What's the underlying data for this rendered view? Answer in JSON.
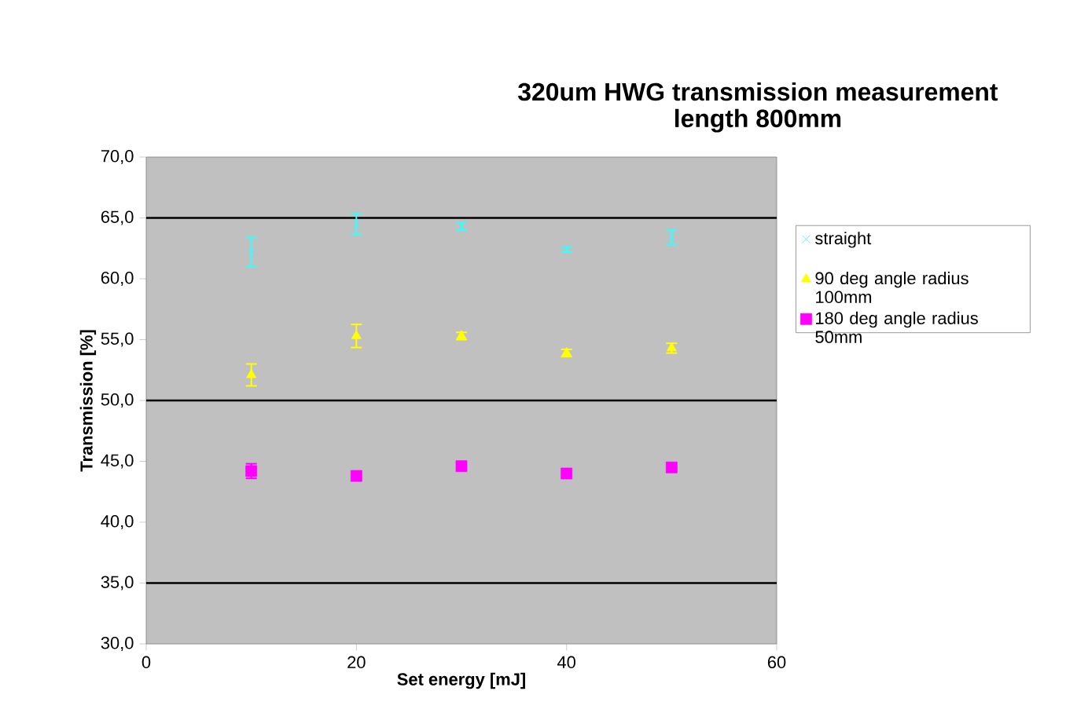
{
  "chart_data": {
    "type": "scatter",
    "title": "320um HWG transmission measurement\nlength 800mm",
    "xlabel": "Set energy [mJ]",
    "ylabel": "Transmission [%]",
    "x": [
      10,
      20,
      30,
      40,
      50
    ],
    "series": [
      {
        "name": "straight",
        "color": "#33ffff",
        "marker": "cross",
        "values": [
          62.2,
          64.5,
          64.3,
          62.4,
          63.4
        ],
        "errors": [
          1.2,
          0.85,
          0.3,
          0.2,
          0.6
        ]
      },
      {
        "name": "90 deg angle radius 100mm",
        "color": "#ffff00",
        "marker": "triangle",
        "values": [
          52.1,
          55.3,
          55.3,
          53.9,
          54.3
        ],
        "errors": [
          0.9,
          0.95,
          0.3,
          0.3,
          0.4
        ]
      },
      {
        "name": "180 deg angle radius 50mm",
        "color": "#ff00ff",
        "marker": "square",
        "values": [
          44.2,
          43.8,
          44.6,
          44.0,
          44.5
        ],
        "errors": [
          0.6,
          null,
          null,
          null,
          null
        ]
      }
    ],
    "xlim": [
      0,
      60
    ],
    "xticks": [
      0,
      20,
      40,
      60
    ],
    "ylim": [
      30,
      70
    ],
    "yticks": [
      {
        "value": 30,
        "label": "30,0"
      },
      {
        "value": 35,
        "label": "35,0"
      },
      {
        "value": 40,
        "label": "40,0"
      },
      {
        "value": 45,
        "label": "45,0"
      },
      {
        "value": 50,
        "label": "50,0"
      },
      {
        "value": 55,
        "label": "55,0"
      },
      {
        "value": 60,
        "label": "60,0"
      },
      {
        "value": 65,
        "label": "65,0"
      },
      {
        "value": 70,
        "label": "70,0"
      }
    ],
    "ref_lines": [
      {
        "axis": "y",
        "value": 35,
        "color": "#000000"
      },
      {
        "axis": "y",
        "value": 50,
        "color": "#000000"
      },
      {
        "axis": "y",
        "value": 65,
        "color": "#000000"
      }
    ],
    "legend": "right"
  }
}
